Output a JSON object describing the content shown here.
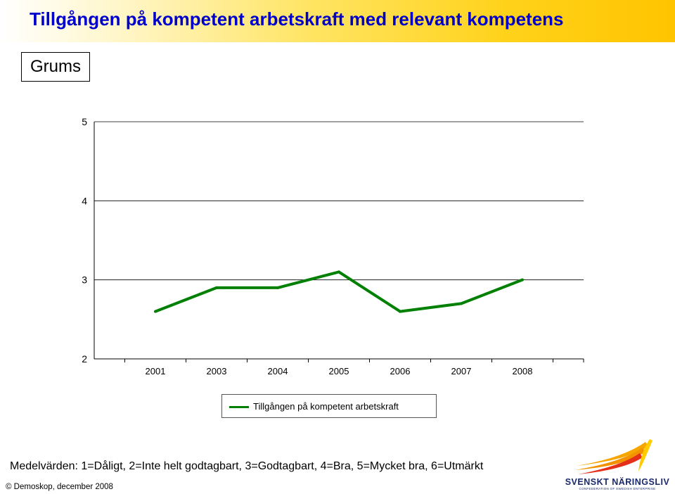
{
  "header": {
    "title": "Tillgången på kompetent arbetskraft med relevant kompetens",
    "region": "Grums"
  },
  "chart_data": {
    "type": "line",
    "categories": [
      "2001",
      "2003",
      "2004",
      "2005",
      "2006",
      "2007",
      "2008"
    ],
    "series": [
      {
        "name": "Tillgången på kompetent arbetskraft",
        "values": [
          2.6,
          2.9,
          2.9,
          3.1,
          2.6,
          2.7,
          3.0
        ],
        "color": "#008000"
      }
    ],
    "ylim": [
      2,
      5
    ],
    "yticks": [
      2,
      3,
      4,
      5
    ],
    "grid": "horizontal",
    "legend": "bottom-center"
  },
  "footnote": "Medelvärden: 1=Dåligt, 2=Inte helt godtagbart, 3=Godtagbart, 4=Bra, 5=Mycket bra, 6=Utmärkt",
  "copyright": "© Demoskop, december 2008",
  "logo": {
    "name": "SVENSKT NÄRINGSLIV",
    "tagline": "CONFEDERATION OF SWEDISH ENTERPRISE"
  }
}
